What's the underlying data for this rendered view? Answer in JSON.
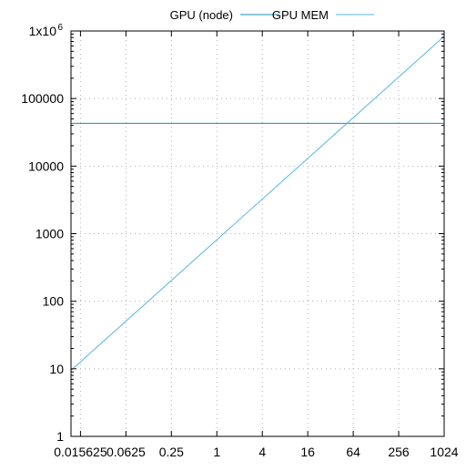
{
  "chart_data": {
    "type": "line",
    "x_scale": "log2",
    "y_scale": "log10",
    "xlim": [
      0.0117,
      1024
    ],
    "ylim": [
      1,
      1000000
    ],
    "grid": true,
    "legend_position": "top-center",
    "x_ticks": [
      0.015625,
      0.0625,
      0.25,
      1,
      4,
      16,
      64,
      256,
      1024
    ],
    "x_tick_labels": [
      "0.015625",
      "0.0625",
      "0.25",
      "1",
      "4",
      "16",
      "64",
      "256",
      "1024"
    ],
    "y_ticks": [
      1,
      10,
      100,
      1000,
      10000,
      100000,
      1000000
    ],
    "y_tick_labels": [
      "1",
      "10",
      "100",
      "1000",
      "10000",
      "100000",
      "1x10"
    ],
    "y_tick_top_exponent": "6",
    "series": [
      {
        "name": "GPU (node)",
        "color": "#1a8fb0",
        "x": [
          0.0117,
          1024
        ],
        "y": [
          43000,
          43000
        ]
      },
      {
        "name": "GPU MEM",
        "color": "#56b4e9",
        "x": [
          0.0117,
          1024
        ],
        "y": [
          9.5,
          833000
        ]
      }
    ]
  }
}
